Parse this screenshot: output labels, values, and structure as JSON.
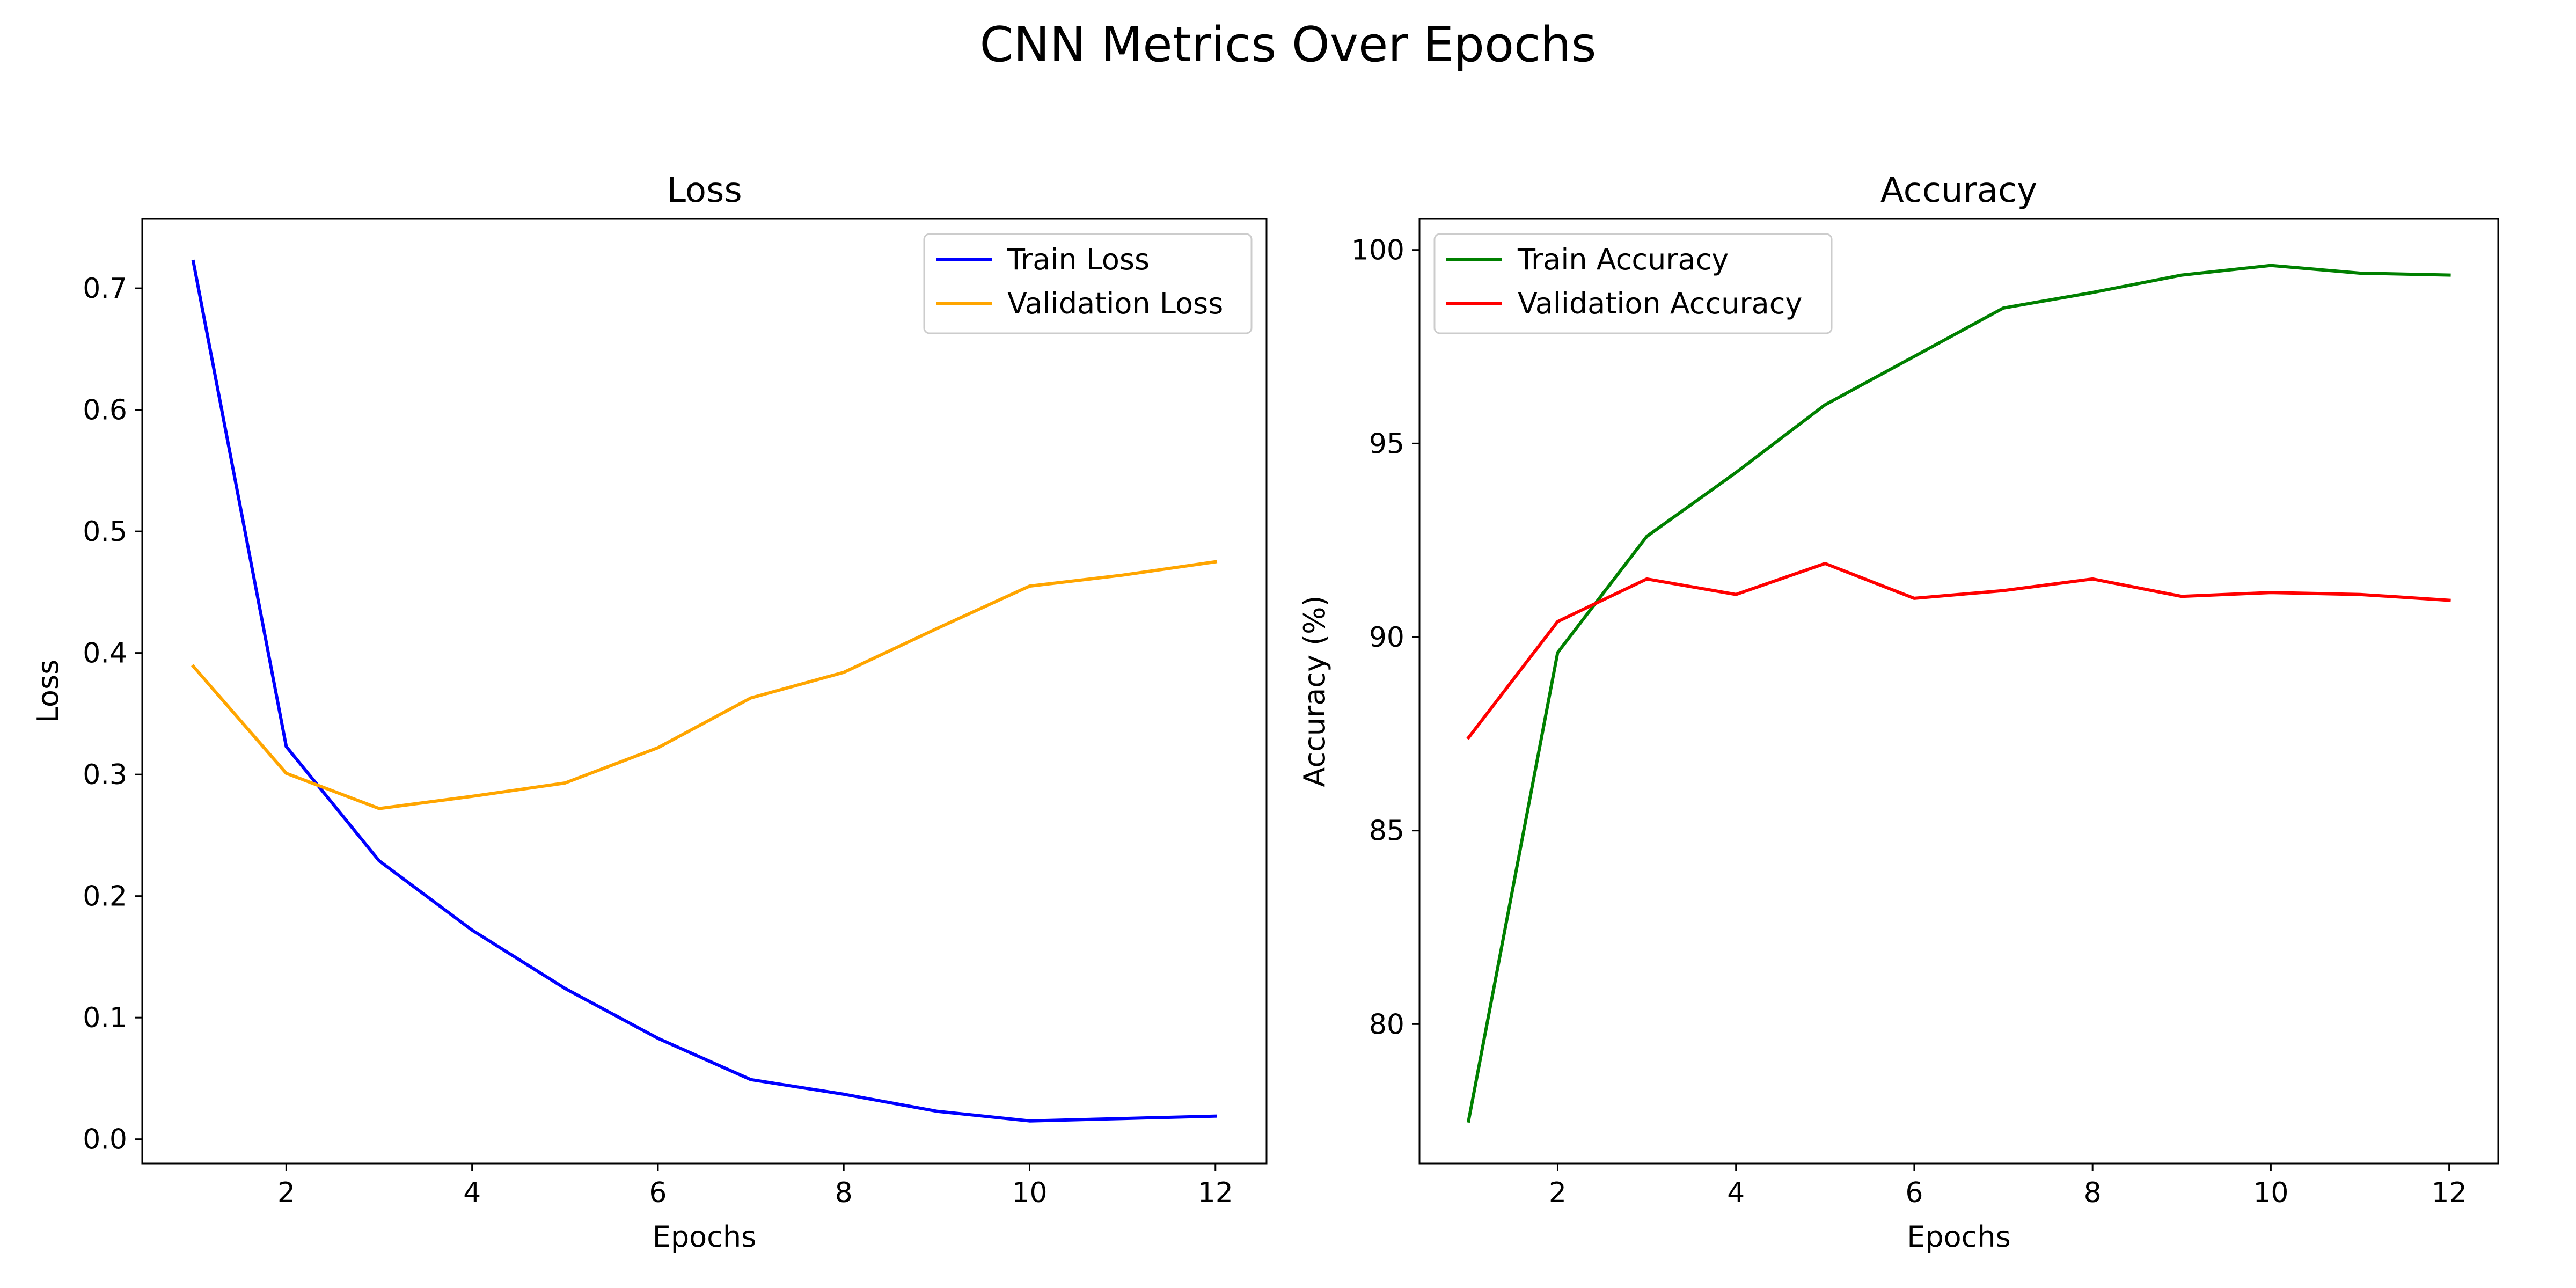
{
  "figure": {
    "suptitle": "CNN Metrics Over Epochs"
  },
  "chart_data": [
    {
      "type": "line",
      "title": "Loss",
      "xlabel": "Epochs",
      "ylabel": "Loss",
      "xlim": [
        0.45,
        12.55
      ],
      "ylim": [
        -0.02,
        0.757
      ],
      "xticks": [
        2,
        4,
        6,
        8,
        10,
        12
      ],
      "yticks": [
        0.0,
        0.1,
        0.2,
        0.3,
        0.4,
        0.5,
        0.6,
        0.7
      ],
      "ytick_labels": [
        "0.0",
        "0.1",
        "0.2",
        "0.3",
        "0.4",
        "0.5",
        "0.6",
        "0.7"
      ],
      "legend_position": "upper-right",
      "grid": false,
      "x": [
        1,
        2,
        3,
        4,
        5,
        6,
        7,
        8,
        9,
        10,
        11,
        12
      ],
      "series": [
        {
          "name": "Train Loss",
          "color": "#0000ff",
          "values": [
            0.722,
            0.323,
            0.229,
            0.172,
            0.124,
            0.083,
            0.049,
            0.037,
            0.023,
            0.015,
            0.017,
            0.019
          ]
        },
        {
          "name": "Validation Loss",
          "color": "#ffa500",
          "values": [
            0.389,
            0.301,
            0.272,
            0.282,
            0.293,
            0.322,
            0.363,
            0.384,
            0.42,
            0.455,
            0.464,
            0.475
          ]
        }
      ]
    },
    {
      "type": "line",
      "title": "Accuracy",
      "xlabel": "Epochs",
      "ylabel": "Accuracy (%)",
      "xlim": [
        0.45,
        12.55
      ],
      "ylim": [
        76.4,
        100.8
      ],
      "xticks": [
        2,
        4,
        6,
        8,
        10,
        12
      ],
      "yticks": [
        80,
        85,
        90,
        95,
        100
      ],
      "ytick_labels": [
        "80",
        "85",
        "90",
        "95",
        "100"
      ],
      "legend_position": "upper-left",
      "grid": false,
      "x": [
        1,
        2,
        3,
        4,
        5,
        6,
        7,
        8,
        9,
        10,
        11,
        12
      ],
      "series": [
        {
          "name": "Train Accuracy",
          "color": "#008000",
          "values": [
            77.5,
            89.6,
            92.6,
            94.25,
            96.0,
            97.25,
            98.5,
            98.9,
            99.35,
            99.6,
            99.4,
            99.35
          ]
        },
        {
          "name": "Validation Accuracy",
          "color": "#ff0000",
          "values": [
            87.4,
            90.4,
            91.5,
            91.1,
            91.9,
            91.0,
            91.2,
            91.5,
            91.05,
            91.15,
            91.1,
            90.95
          ]
        }
      ]
    }
  ]
}
